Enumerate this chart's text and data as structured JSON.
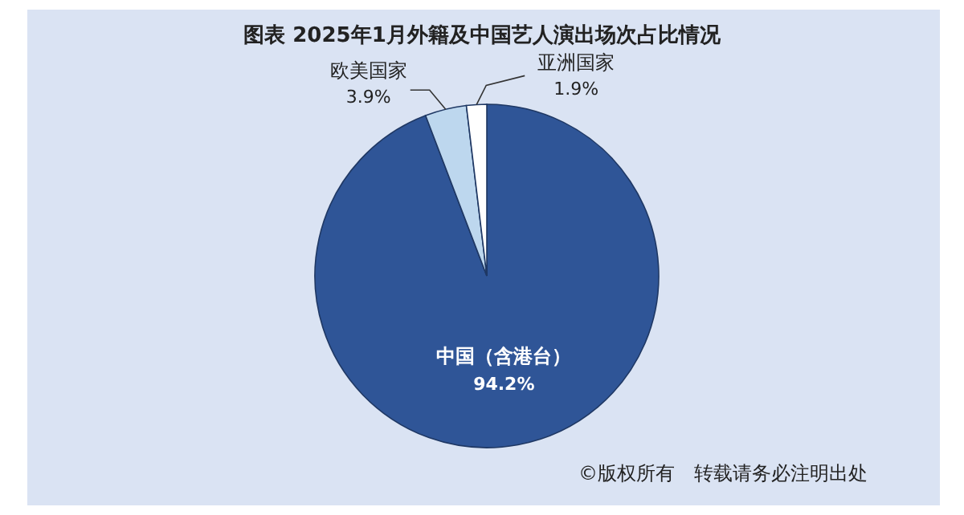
{
  "chart_data": {
    "type": "pie",
    "title": "图表  2025年1月外籍及中国艺人演出场次占比情况",
    "categories": [
      "中国（含港台）",
      "欧美国家",
      "亚洲国家"
    ],
    "values": [
      94.2,
      3.9,
      1.9
    ],
    "value_labels": [
      "94.2%",
      "3.9%",
      "1.9%"
    ],
    "colors": [
      "#2f5597",
      "#bdd7ee",
      "#ffffff"
    ],
    "legend": false,
    "annotations": [
      "©版权所有　转载请务必注明出处"
    ]
  }
}
